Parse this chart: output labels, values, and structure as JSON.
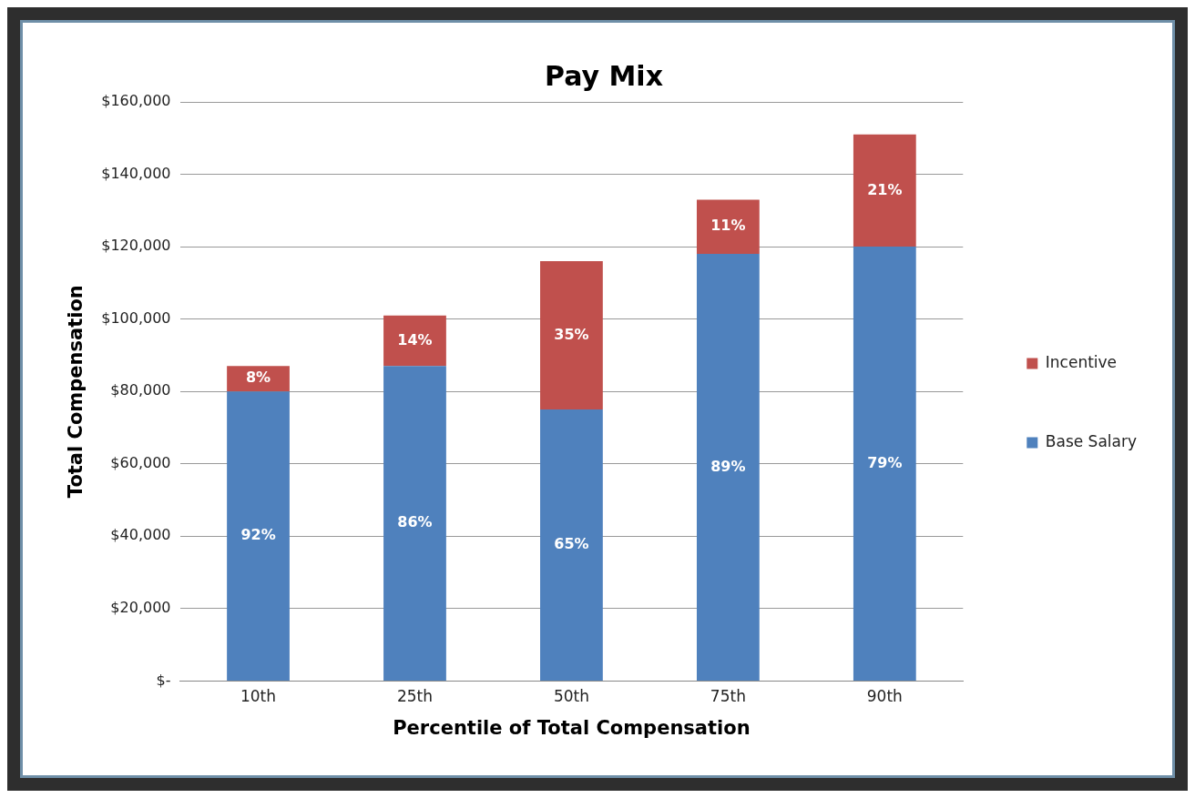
{
  "chart_data": {
    "type": "bar",
    "title": "Pay Mix",
    "xlabel": "Percentile of Total Compensation",
    "ylabel": "Total Compensation",
    "categories": [
      "10th",
      "25th",
      "50th",
      "75th",
      "90th"
    ],
    "stacked": true,
    "series": [
      {
        "name": "Base Salary",
        "color": "#4f81bd",
        "values": [
          80000,
          87000,
          75000,
          118000,
          120000
        ]
      },
      {
        "name": "Incentive",
        "color": "#c0504d",
        "values": [
          7000,
          14000,
          41000,
          15000,
          31000
        ]
      }
    ],
    "annotations": [
      "92%",
      "86%",
      "65%",
      "89%",
      "79%",
      "8%",
      "14%",
      "35%",
      "11%",
      "21%"
    ],
    "ylim": [
      0,
      160000
    ],
    "yticks": [
      {
        "value": 0,
        "label": "$-"
      },
      {
        "value": 20000,
        "label": "$20,000"
      },
      {
        "value": 40000,
        "label": "$40,000"
      },
      {
        "value": 60000,
        "label": "$60,000"
      },
      {
        "value": 80000,
        "label": "$80,000"
      },
      {
        "value": 100000,
        "label": "$100,000"
      },
      {
        "value": 120000,
        "label": "$120,000"
      },
      {
        "value": 140000,
        "label": "$140,000"
      },
      {
        "value": 160000,
        "label": "$160,000"
      }
    ],
    "grid": "y",
    "legend": "right"
  }
}
